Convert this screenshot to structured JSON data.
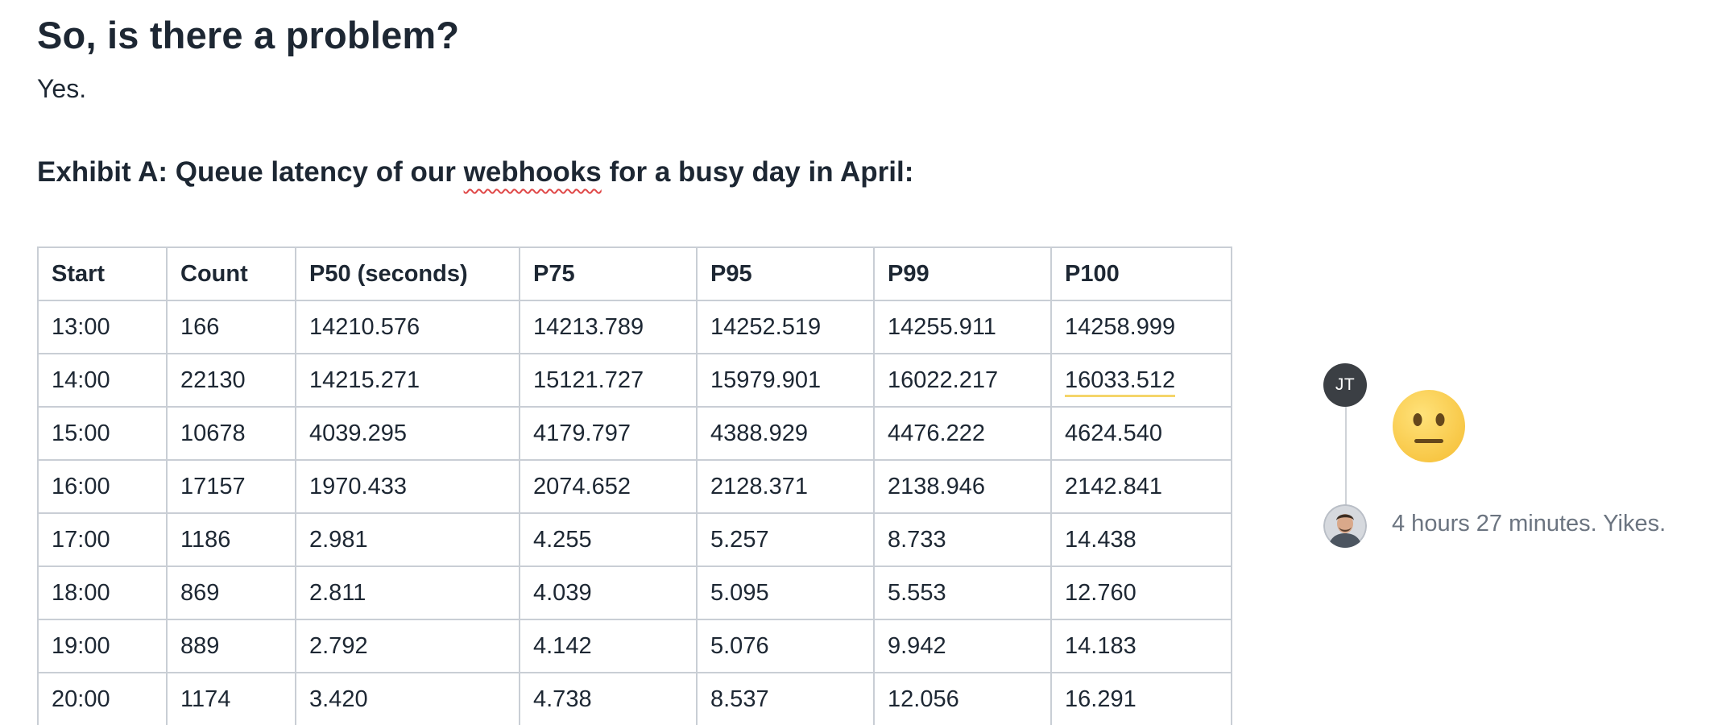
{
  "heading": "So, is there a problem?",
  "answer": "Yes.",
  "exhibit": {
    "before": "Exhibit A: Queue latency of our ",
    "flagged_word": "webhooks",
    "after": " for a busy day in April:"
  },
  "table": {
    "headers": [
      "Start",
      "Count",
      "P50 (seconds)",
      "P75",
      "P95",
      "P99",
      "P100"
    ],
    "rows": [
      [
        "13:00",
        "166",
        "14210.576",
        "14213.789",
        "14252.519",
        "14255.911",
        "14258.999"
      ],
      [
        "14:00",
        "22130",
        "14215.271",
        "15121.727",
        "15979.901",
        "16022.217",
        "16033.512"
      ],
      [
        "15:00",
        "10678",
        "4039.295",
        "4179.797",
        "4388.929",
        "4476.222",
        "4624.540"
      ],
      [
        "16:00",
        "17157",
        "1970.433",
        "2074.652",
        "2128.371",
        "2138.946",
        "2142.841"
      ],
      [
        "17:00",
        "1186",
        "2.981",
        "4.255",
        "5.257",
        "8.733",
        "14.438"
      ],
      [
        "18:00",
        "869",
        "2.811",
        "4.039",
        "5.095",
        "5.553",
        "12.760"
      ],
      [
        "19:00",
        "889",
        "2.792",
        "4.142",
        "5.076",
        "9.942",
        "14.183"
      ],
      [
        "20:00",
        "1174",
        "3.420",
        "4.738",
        "8.537",
        "12.056",
        "16.291"
      ]
    ]
  },
  "comments": {
    "first": {
      "avatar_initials": "JT",
      "reaction_icon": "neutral-face-emoji"
    },
    "second": {
      "avatar_icon": "user-photo-avatar",
      "text": "4 hours 27 minutes. Yikes."
    }
  }
}
